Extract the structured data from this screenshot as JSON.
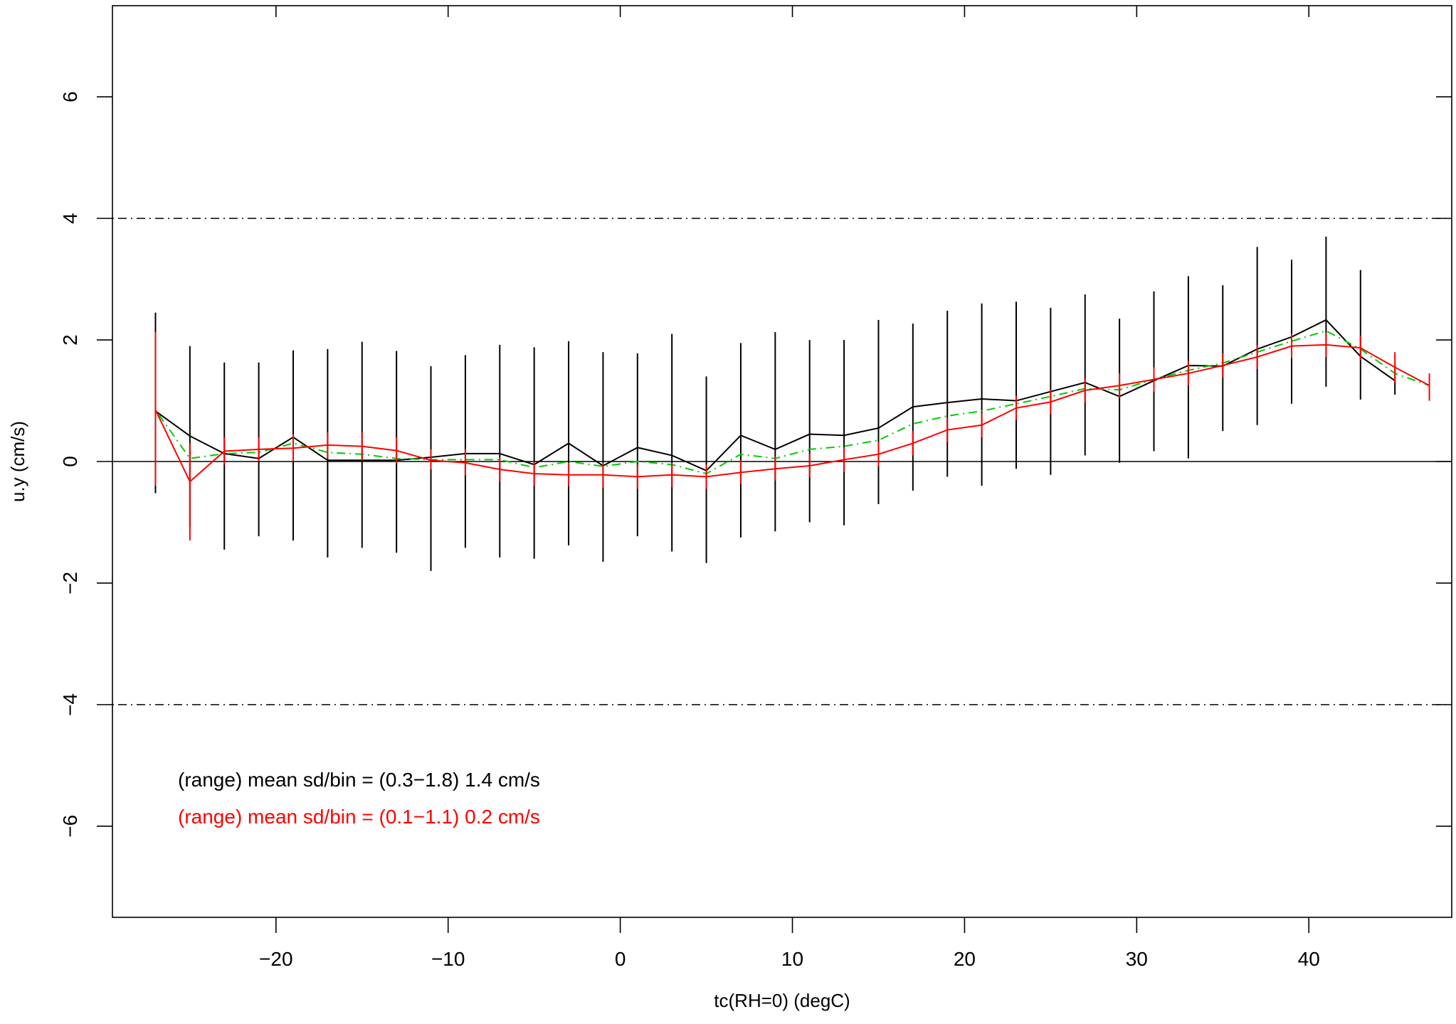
{
  "chart_data": {
    "type": "line",
    "title": "",
    "xlabel": "tc(RH=0) (degC)",
    "ylabel": "u.y (cm/s)",
    "xlim": [
      -29.5,
      48.3
    ],
    "ylim": [
      -7.5,
      7.5
    ],
    "xticks": [
      -20,
      -10,
      0,
      10,
      20,
      30,
      40
    ],
    "yticks": [
      -6,
      -4,
      -2,
      0,
      2,
      4,
      6
    ],
    "xtick_labels": [
      "−20",
      "−10",
      "0",
      "10",
      "20",
      "30",
      "40"
    ],
    "ytick_labels": [
      "−6",
      "−4",
      "−2",
      "0",
      "2",
      "4",
      "6"
    ],
    "grid": false,
    "reference_lines": [
      {
        "y": 0,
        "style": "solid",
        "color": "#000000"
      },
      {
        "y": 4,
        "style": "dotdash",
        "color": "#000000"
      },
      {
        "y": -4,
        "style": "dotdash",
        "color": "#000000"
      }
    ],
    "series": [
      {
        "color": "#000000",
        "style": "solid",
        "x": [
          -27,
          -25,
          -23,
          -21,
          -19,
          -17,
          -15,
          -13,
          -11,
          -9,
          -7,
          -5,
          -3,
          -1,
          1,
          3,
          5,
          7,
          9,
          11,
          13,
          15,
          17,
          19,
          21,
          23,
          25,
          27,
          29,
          31,
          33,
          35,
          37,
          39,
          41,
          43,
          45
        ],
        "y": [
          0.83,
          0.42,
          0.13,
          0.05,
          0.4,
          0.02,
          0.02,
          0.02,
          0.07,
          0.13,
          0.13,
          -0.05,
          0.3,
          -0.07,
          0.23,
          0.1,
          -0.15,
          0.43,
          0.2,
          0.45,
          0.43,
          0.55,
          0.9,
          0.97,
          1.03,
          1.0,
          1.15,
          1.3,
          1.07,
          1.33,
          1.58,
          1.57,
          1.85,
          2.05,
          2.33,
          1.73,
          1.33
        ],
        "err_low": [
          -0.52,
          -1.08,
          -1.45,
          -1.23,
          -1.3,
          -1.58,
          -1.42,
          -1.5,
          -1.8,
          -1.42,
          -1.58,
          -1.6,
          -1.38,
          -1.65,
          -1.23,
          -1.48,
          -1.67,
          -1.25,
          -1.15,
          -1.0,
          -1.05,
          -0.7,
          -0.48,
          -0.25,
          -0.4,
          -0.12,
          -0.22,
          0.1,
          -0.02,
          0.17,
          0.05,
          0.5,
          0.6,
          0.95,
          1.23,
          1.02,
          1.1
        ],
        "err_high": [
          2.45,
          1.9,
          1.63,
          1.63,
          1.83,
          1.85,
          1.97,
          1.82,
          1.57,
          1.75,
          1.92,
          1.88,
          1.98,
          1.8,
          1.78,
          2.1,
          1.4,
          1.95,
          2.13,
          2.0,
          2.0,
          2.33,
          2.27,
          2.48,
          2.6,
          2.63,
          2.53,
          2.75,
          2.35,
          2.8,
          3.05,
          2.9,
          3.53,
          3.32,
          3.7,
          3.15,
          1.58
        ]
      },
      {
        "color": "#00cc00",
        "style": "dotdash",
        "x": [
          -27,
          -25,
          -23,
          -21,
          -19,
          -17,
          -15,
          -13,
          -11,
          -9,
          -7,
          -5,
          -3,
          -1,
          1,
          3,
          5,
          7,
          9,
          11,
          13,
          15,
          17,
          19,
          21,
          23,
          25,
          27,
          29,
          31,
          33,
          35,
          37,
          39,
          41,
          43,
          45,
          47
        ],
        "y": [
          0.85,
          0.05,
          0.13,
          0.15,
          0.3,
          0.15,
          0.12,
          0.05,
          0.03,
          0.03,
          0.03,
          -0.1,
          0.0,
          -0.08,
          0.0,
          -0.05,
          -0.2,
          0.12,
          0.05,
          0.2,
          0.25,
          0.35,
          0.62,
          0.75,
          0.83,
          0.95,
          1.07,
          1.2,
          1.18,
          1.35,
          1.5,
          1.62,
          1.8,
          1.98,
          2.15,
          1.85,
          1.45,
          1.25
        ]
      },
      {
        "color": "#ff0000",
        "style": "solid",
        "x": [
          -27,
          -25,
          -23,
          -21,
          -19,
          -17,
          -15,
          -13,
          -11,
          -9,
          -7,
          -5,
          -3,
          -1,
          1,
          3,
          5,
          7,
          9,
          11,
          13,
          15,
          17,
          19,
          21,
          23,
          25,
          27,
          29,
          31,
          33,
          35,
          37,
          39,
          41,
          43,
          45,
          47
        ],
        "y": [
          0.85,
          -0.33,
          0.17,
          0.2,
          0.22,
          0.27,
          0.25,
          0.18,
          0.02,
          -0.02,
          -0.13,
          -0.2,
          -0.22,
          -0.22,
          -0.25,
          -0.22,
          -0.25,
          -0.18,
          -0.12,
          -0.07,
          0.03,
          0.12,
          0.3,
          0.52,
          0.6,
          0.88,
          0.98,
          1.17,
          1.25,
          1.35,
          1.45,
          1.58,
          1.72,
          1.9,
          1.92,
          1.87,
          1.55,
          1.25
        ],
        "err_low": [
          -0.4,
          -1.3,
          -0.05,
          0.0,
          0.0,
          0.05,
          0.02,
          -0.03,
          -0.13,
          -0.23,
          -0.33,
          -0.4,
          -0.4,
          -0.43,
          -0.45,
          -0.42,
          -0.45,
          -0.37,
          -0.31,
          -0.26,
          -0.17,
          -0.08,
          0.1,
          0.32,
          0.4,
          0.68,
          0.78,
          0.97,
          1.05,
          1.15,
          1.25,
          1.38,
          1.52,
          1.7,
          1.72,
          1.67,
          1.3,
          1.0
        ],
        "err_high": [
          2.13,
          0.3,
          0.4,
          0.4,
          0.45,
          0.48,
          0.48,
          0.4,
          0.2,
          0.2,
          0.07,
          0.0,
          -0.02,
          -0.02,
          -0.05,
          -0.02,
          -0.05,
          0.02,
          0.08,
          0.13,
          0.23,
          0.32,
          0.5,
          0.72,
          0.8,
          1.08,
          1.18,
          1.37,
          1.45,
          1.55,
          1.65,
          1.78,
          1.92,
          2.1,
          2.12,
          2.07,
          1.8,
          1.45
        ]
      }
    ],
    "annotations": [
      {
        "text": "(range) mean sd/bin = (0.3−1.8) 1.4 cm/s",
        "color": "#000000"
      },
      {
        "text": "(range) mean sd/bin = (0.1−1.1) 0.2 cm/s",
        "color": "#ff0000"
      }
    ]
  }
}
